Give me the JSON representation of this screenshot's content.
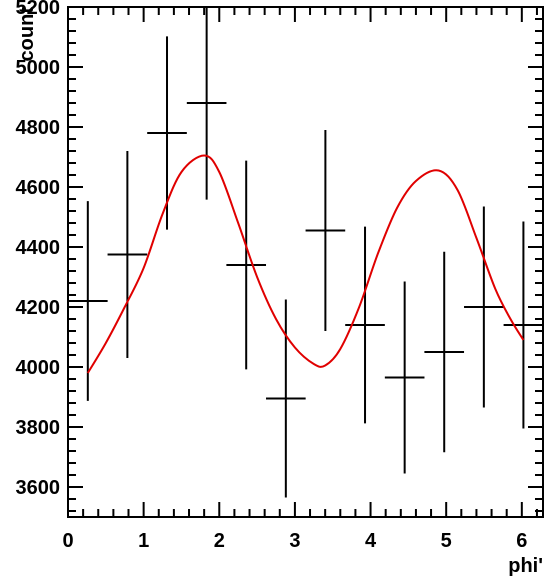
{
  "chart_data": {
    "type": "scatter",
    "xlabel": "phi'",
    "ylabel": "count",
    "xlim": [
      0,
      6.28
    ],
    "ylim": [
      3500,
      5200
    ],
    "x_ticks": [
      0,
      1,
      2,
      3,
      4,
      5,
      6
    ],
    "y_ticks": [
      3600,
      3800,
      4000,
      4200,
      4400,
      4600,
      4800,
      5000,
      5200
    ],
    "x_tick_labels": [
      "0",
      "1",
      "2",
      "3",
      "4",
      "5",
      "6"
    ],
    "y_tick_labels": [
      "3600",
      "3800",
      "4000",
      "4200",
      "4400",
      "4600",
      "4800",
      "5000",
      "5200"
    ],
    "grid": false,
    "series": [
      {
        "type": "errorbar",
        "color": "#000000",
        "x": [
          0.262,
          0.785,
          1.309,
          1.833,
          2.356,
          2.88,
          3.403,
          3.927,
          4.451,
          4.974,
          5.498,
          6.021
        ],
        "y": [
          4220,
          4375,
          4780,
          4880,
          4340,
          3895,
          4455,
          4140,
          3965,
          4050,
          4200,
          4140
        ],
        "y_err": [
          333,
          345,
          322,
          322,
          348,
          330,
          335,
          328,
          320,
          334,
          335,
          345
        ],
        "x_halfwidth": 0.262
      },
      {
        "type": "line",
        "color": "#e00000",
        "x": [
          0.262,
          0.5,
          0.75,
          1.0,
          1.25,
          1.5,
          1.8,
          2.0,
          2.25,
          2.5,
          2.75,
          3.0,
          3.25,
          3.4,
          3.6,
          3.85,
          4.1,
          4.35,
          4.6,
          4.9,
          5.15,
          5.4,
          5.65,
          5.85,
          6.021
        ],
        "y": [
          3980,
          4080,
          4200,
          4330,
          4510,
          4650,
          4705,
          4650,
          4480,
          4300,
          4160,
          4065,
          4010,
          4005,
          4060,
          4200,
          4380,
          4530,
          4620,
          4655,
          4590,
          4430,
          4260,
          4160,
          4090
        ]
      }
    ]
  }
}
